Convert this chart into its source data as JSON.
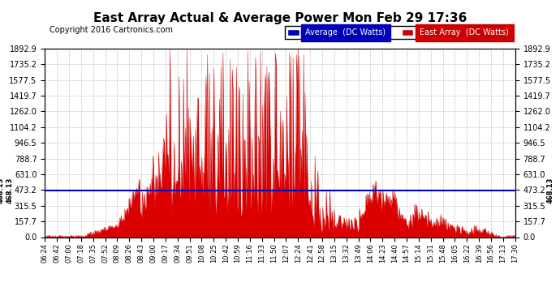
{
  "title": "East Array Actual & Average Power Mon Feb 29 17:36",
  "copyright": "Copyright 2016 Cartronics.com",
  "legend_labels": [
    "Average  (DC Watts)",
    "East Array  (DC Watts)"
  ],
  "legend_colors": [
    "#0000bb",
    "#cc0000"
  ],
  "y_max": 1892.9,
  "y_min": 0.0,
  "y_ticks": [
    0.0,
    157.7,
    315.5,
    473.2,
    631.0,
    788.7,
    946.5,
    1104.2,
    1262.0,
    1419.7,
    1577.5,
    1735.2,
    1892.9
  ],
  "hline_y": 468.13,
  "hline_label": "468.13",
  "background_color": "#ffffff",
  "plot_bg_color": "#ffffff",
  "grid_color": "#aaaaaa",
  "fill_color": "#dd0000",
  "line_color": "#cc0000",
  "avg_line_color": "#0000bb",
  "x_tick_labels": [
    "06:24",
    "06:42",
    "07:00",
    "07:18",
    "07:35",
    "07:52",
    "08:09",
    "08:26",
    "08:43",
    "09:00",
    "09:17",
    "09:34",
    "09:51",
    "10:08",
    "10:25",
    "10:42",
    "10:59",
    "11:16",
    "11:33",
    "11:50",
    "12:07",
    "12:24",
    "12:41",
    "12:58",
    "13:15",
    "13:32",
    "13:49",
    "14:06",
    "14:23",
    "14:40",
    "14:57",
    "15:14",
    "15:31",
    "15:48",
    "16:05",
    "16:22",
    "16:39",
    "16:56",
    "17:13",
    "17:30"
  ]
}
